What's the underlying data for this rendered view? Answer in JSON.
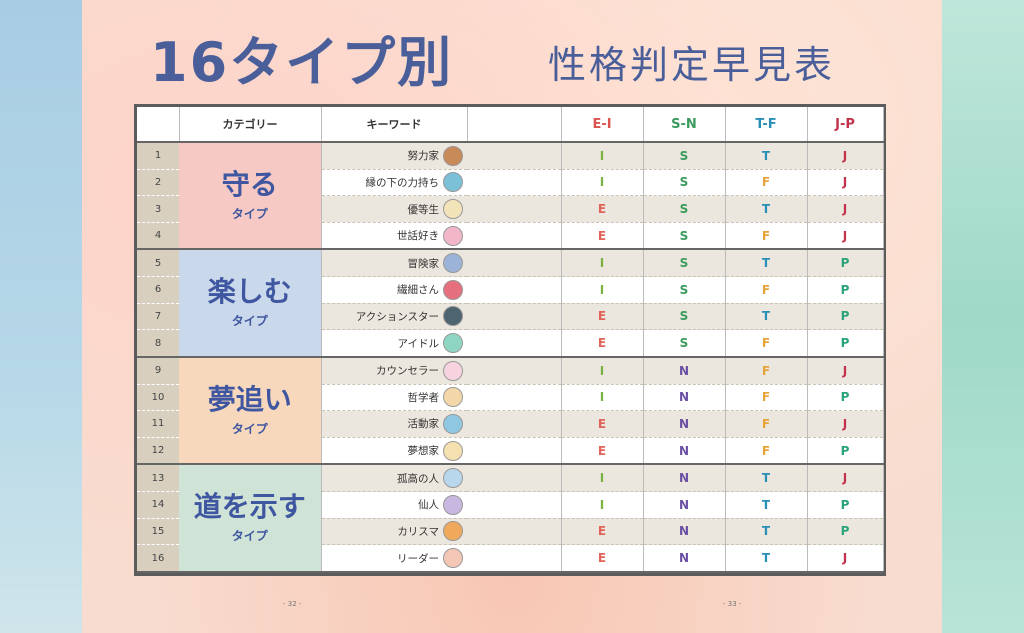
{
  "title": "16タイプ別",
  "subtitle": "性格判定早見表",
  "page_left": "- 32 -",
  "page_right": "- 33 -",
  "headers": {
    "category": "カテゴリー",
    "keyword": "キーワード",
    "ei": "E-I",
    "sn": "S-N",
    "tf": "T-F",
    "jp": "J-P"
  },
  "categories": [
    {
      "name": "守る",
      "sub": "タイプ",
      "color": "#f6c9c4"
    },
    {
      "name": "楽しむ",
      "sub": "タイプ",
      "color": "#c9d8ea"
    },
    {
      "name": "夢追い",
      "sub": "タイプ",
      "color": "#f8d8bd"
    },
    {
      "name": "道を示す",
      "sub": "タイプ",
      "color": "#cfe4d6"
    }
  ],
  "rows": [
    {
      "num": "1",
      "keyword": "努力家",
      "ei": "I",
      "sn": "S",
      "tf": "T",
      "jp": "J",
      "icon": "worker-face-icon",
      "icon_color": "#c98a5a"
    },
    {
      "num": "2",
      "keyword": "縁の下の力持ち",
      "ei": "I",
      "sn": "S",
      "tf": "F",
      "jp": "J",
      "icon": "hooded-face-icon",
      "icon_color": "#7cc0d8"
    },
    {
      "num": "3",
      "keyword": "優等生",
      "ei": "E",
      "sn": "S",
      "tf": "T",
      "jp": "J",
      "icon": "glasses-face-icon",
      "icon_color": "#f3e3b8"
    },
    {
      "num": "4",
      "keyword": "世話好き",
      "ei": "E",
      "sn": "S",
      "tf": "F",
      "jp": "J",
      "icon": "pink-face-icon",
      "icon_color": "#f2b6c8"
    },
    {
      "num": "5",
      "keyword": "冒険家",
      "ei": "I",
      "sn": "S",
      "tf": "T",
      "jp": "P",
      "icon": "blue-face-icon",
      "icon_color": "#9bb3d6"
    },
    {
      "num": "6",
      "keyword": "繊細さん",
      "ei": "I",
      "sn": "S",
      "tf": "F",
      "jp": "P",
      "icon": "beret-face-icon",
      "icon_color": "#e56f7d"
    },
    {
      "num": "7",
      "keyword": "アクションスター",
      "ei": "E",
      "sn": "S",
      "tf": "T",
      "jp": "P",
      "icon": "sunglasses-face-icon",
      "icon_color": "#4e6470"
    },
    {
      "num": "8",
      "keyword": "アイドル",
      "ei": "E",
      "sn": "S",
      "tf": "F",
      "jp": "P",
      "icon": "idol-face-icon",
      "icon_color": "#8fd6c2"
    },
    {
      "num": "9",
      "keyword": "カウンセラー",
      "ei": "I",
      "sn": "N",
      "tf": "F",
      "jp": "J",
      "icon": "counselor-face-icon",
      "icon_color": "#f6d3de"
    },
    {
      "num": "10",
      "keyword": "哲学者",
      "ei": "I",
      "sn": "N",
      "tf": "F",
      "jp": "P",
      "icon": "philosopher-face-icon",
      "icon_color": "#f4d7a8"
    },
    {
      "num": "11",
      "keyword": "活動家",
      "ei": "E",
      "sn": "N",
      "tf": "F",
      "jp": "J",
      "icon": "activist-face-icon",
      "icon_color": "#8fc7e0"
    },
    {
      "num": "12",
      "keyword": "夢想家",
      "ei": "E",
      "sn": "N",
      "tf": "F",
      "jp": "P",
      "icon": "dreamer-face-icon",
      "icon_color": "#f5e0b0"
    },
    {
      "num": "13",
      "keyword": "孤高の人",
      "ei": "I",
      "sn": "N",
      "tf": "T",
      "jp": "J",
      "icon": "loner-face-icon",
      "icon_color": "#b9d7ec"
    },
    {
      "num": "14",
      "keyword": "仙人",
      "ei": "I",
      "sn": "N",
      "tf": "T",
      "jp": "P",
      "icon": "sage-face-icon",
      "icon_color": "#c8b8e0"
    },
    {
      "num": "15",
      "keyword": "カリスマ",
      "ei": "E",
      "sn": "N",
      "tf": "T",
      "jp": "P",
      "icon": "charisma-face-icon",
      "icon_color": "#f0a85a"
    },
    {
      "num": "16",
      "keyword": "リーダー",
      "ei": "E",
      "sn": "N",
      "tf": "T",
      "jp": "J",
      "icon": "leader-face-icon",
      "icon_color": "#f3c6b5"
    }
  ]
}
